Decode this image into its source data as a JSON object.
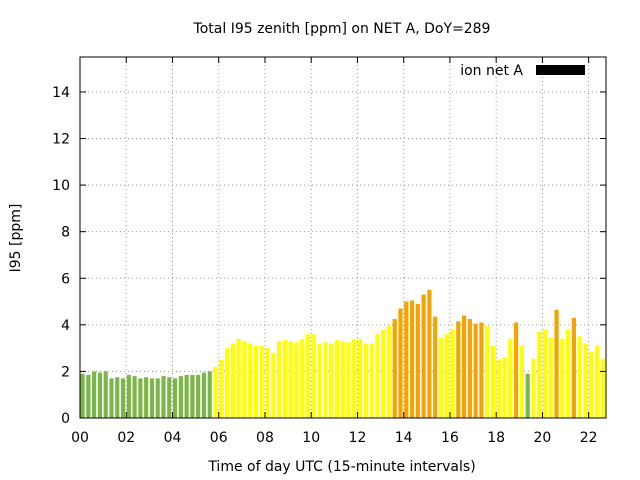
{
  "chart_data": {
    "type": "bar",
    "title": "Total I95 zenith [ppm] on NET A, DoY=289",
    "xlabel": "Time of day UTC (15-minute intervals)",
    "ylabel": "I95 [ppm]",
    "xlim": [
      0,
      22.75
    ],
    "ylim": [
      0,
      15.5
    ],
    "xticks": [
      "00",
      "02",
      "04",
      "06",
      "08",
      "10",
      "12",
      "14",
      "16",
      "18",
      "20",
      "22"
    ],
    "yticks": [
      "0",
      "2",
      "4",
      "6",
      "8",
      "10",
      "12",
      "14"
    ],
    "grid": true,
    "legend": {
      "position": "top-right",
      "entries": [
        {
          "label": "ion net A",
          "color": "#000000"
        }
      ]
    },
    "colors": {
      "green": "#7ab648",
      "yellow": "#ffff00",
      "orange": "#f5a300"
    },
    "series": [
      {
        "x": [
          0.0,
          0.25,
          0.5,
          0.75,
          1.0,
          1.25,
          1.5,
          1.75,
          2.0,
          2.25,
          2.5,
          2.75,
          3.0,
          3.25,
          3.5,
          3.75,
          4.0,
          4.25,
          4.5,
          4.75,
          5.0,
          5.25,
          5.5,
          5.75,
          6.0,
          6.25,
          6.5,
          6.75,
          7.0,
          7.25,
          7.5,
          7.75,
          8.0,
          8.25,
          8.5,
          8.75,
          9.0,
          9.25,
          9.5,
          9.75,
          10.0,
          10.25,
          10.5,
          10.75,
          11.0,
          11.25,
          11.5,
          11.75,
          12.0,
          12.25,
          12.5,
          12.75,
          13.0,
          13.25,
          13.5,
          13.75,
          14.0,
          14.25,
          14.5,
          14.75,
          15.0,
          15.25,
          15.5,
          15.75,
          16.0,
          16.25,
          16.5,
          16.75,
          17.0,
          17.25,
          17.5,
          17.75,
          18.0,
          18.25,
          18.5,
          18.75,
          19.0,
          19.25,
          19.5,
          19.75,
          20.0,
          20.25,
          20.5,
          20.75,
          21.0,
          21.25,
          21.5,
          21.75,
          22.0,
          22.25,
          22.5
        ],
        "values": [
          1.9,
          1.85,
          2.0,
          1.95,
          2.0,
          1.7,
          1.75,
          1.7,
          1.85,
          1.8,
          1.7,
          1.75,
          1.7,
          1.7,
          1.8,
          1.75,
          1.7,
          1.8,
          1.85,
          1.85,
          1.85,
          1.95,
          2.0,
          2.2,
          2.5,
          3.0,
          3.2,
          3.4,
          3.3,
          3.2,
          3.1,
          3.1,
          3.0,
          2.8,
          3.3,
          3.35,
          3.3,
          3.25,
          3.4,
          3.6,
          3.6,
          3.2,
          3.25,
          3.2,
          3.35,
          3.3,
          3.25,
          3.4,
          3.4,
          3.2,
          3.2,
          3.6,
          3.8,
          3.95,
          4.25,
          4.7,
          5.0,
          5.05,
          4.9,
          5.3,
          5.5,
          4.35,
          3.45,
          3.6,
          3.8,
          4.15,
          4.4,
          4.25,
          4.05,
          4.1,
          3.95,
          3.1,
          2.5,
          2.6,
          3.4,
          4.1,
          3.1,
          1.9,
          2.55,
          3.7,
          3.8,
          3.45,
          4.65,
          3.4,
          3.8,
          4.3,
          3.5,
          3.2,
          2.85,
          3.1,
          2.55
        ],
        "colors": [
          "green",
          "green",
          "green",
          "green",
          "green",
          "green",
          "green",
          "green",
          "green",
          "green",
          "green",
          "green",
          "green",
          "green",
          "green",
          "green",
          "green",
          "green",
          "green",
          "green",
          "green",
          "green",
          "green",
          "yellow",
          "yellow",
          "yellow",
          "yellow",
          "yellow",
          "yellow",
          "yellow",
          "yellow",
          "yellow",
          "yellow",
          "yellow",
          "yellow",
          "yellow",
          "yellow",
          "yellow",
          "yellow",
          "yellow",
          "yellow",
          "yellow",
          "yellow",
          "yellow",
          "yellow",
          "yellow",
          "yellow",
          "yellow",
          "yellow",
          "yellow",
          "yellow",
          "yellow",
          "yellow",
          "yellow",
          "orange",
          "orange",
          "orange",
          "orange",
          "orange",
          "orange",
          "orange",
          "orange",
          "yellow",
          "yellow",
          "yellow",
          "orange",
          "orange",
          "orange",
          "orange",
          "orange",
          "yellow",
          "yellow",
          "yellow",
          "yellow",
          "yellow",
          "orange",
          "yellow",
          "green",
          "yellow",
          "yellow",
          "yellow",
          "yellow",
          "orange",
          "yellow",
          "yellow",
          "orange",
          "yellow",
          "yellow",
          "yellow",
          "yellow",
          "yellow"
        ]
      }
    ]
  }
}
